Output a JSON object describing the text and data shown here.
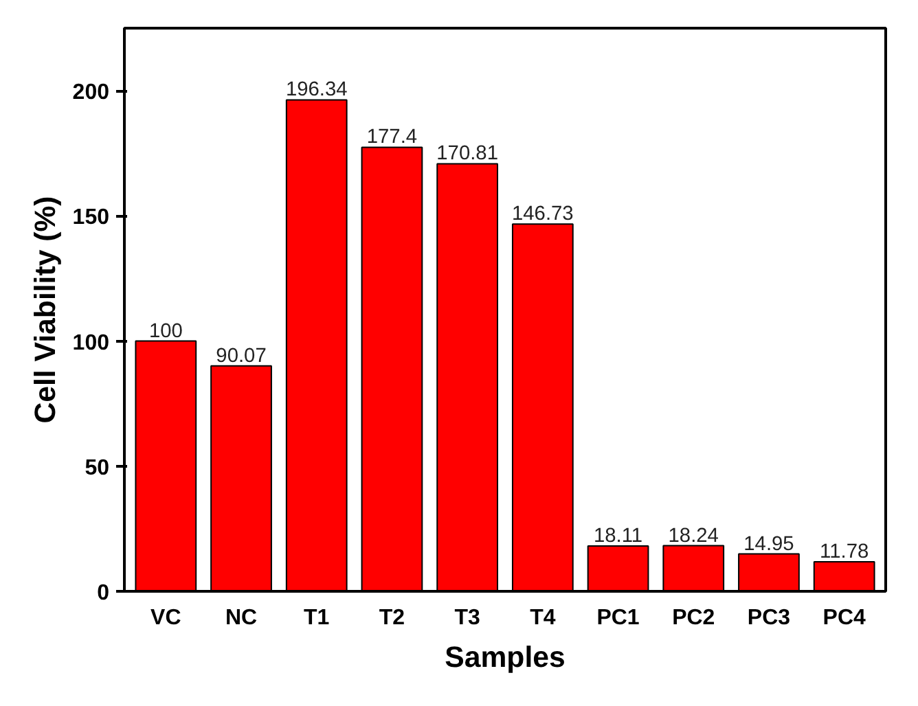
{
  "chart_data": {
    "type": "bar",
    "xlabel": "Samples",
    "ylabel": "Cell Viability (%)",
    "categories": [
      "VC",
      "NC",
      "T1",
      "T2",
      "T3",
      "T4",
      "PC1",
      "PC2",
      "PC3",
      "PC4"
    ],
    "values": [
      100,
      90.07,
      196.34,
      177.4,
      170.81,
      146.73,
      18.11,
      18.24,
      14.95,
      11.78
    ],
    "color": "#ff0000",
    "ylim": [
      0,
      225
    ],
    "yticks": [
      0,
      50,
      100,
      150,
      200
    ],
    "data_labels": true,
    "grid": false
  }
}
